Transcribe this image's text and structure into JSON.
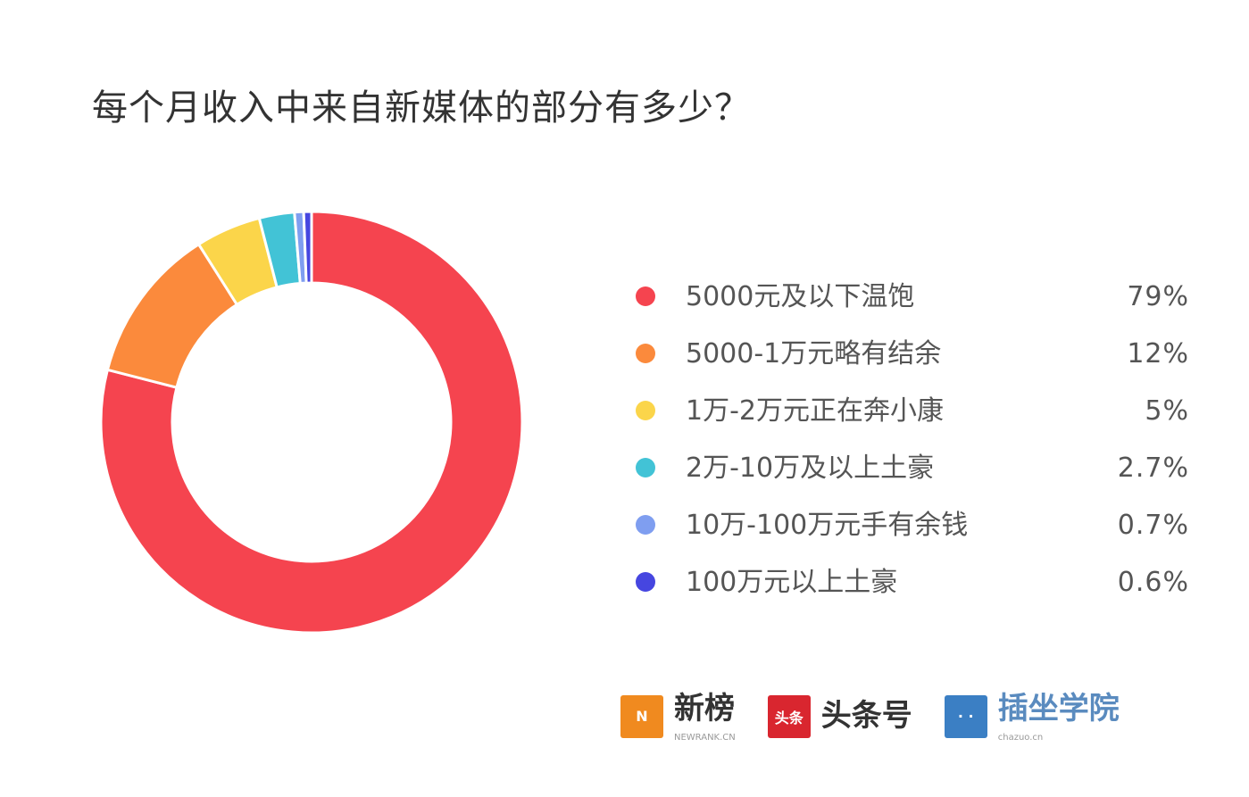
{
  "chart_data": {
    "type": "pie",
    "donut": true,
    "title": "每个月收入中来自新媒体的部分有多少？",
    "legend_position": "right",
    "slices": [
      {
        "label": "5000元及以下温饱",
        "value": 79,
        "display": "79%",
        "color": "#f5444f"
      },
      {
        "label": "5000-1万元略有结余",
        "value": 12,
        "display": "12%",
        "color": "#fb8a3c"
      },
      {
        "label": "1万-2万元正在奔小康",
        "value": 5,
        "display": "5%",
        "color": "#fbd54a"
      },
      {
        "label": "2万-10万及以上土豪",
        "value": 2.7,
        "display": "2.7%",
        "color": "#42c3d6"
      },
      {
        "label": "10万-100万元手有余钱",
        "value": 0.7,
        "display": "0.7%",
        "color": "#7f9ef0"
      },
      {
        "label": "100万元以上土豪",
        "value": 0.6,
        "display": "0.6%",
        "color": "#4646e0"
      }
    ]
  },
  "logos": [
    {
      "name": "新榜",
      "sub": "NEWRANK.CN",
      "mark": "N",
      "color": "#f08a1f"
    },
    {
      "name": "头条号",
      "sub": "",
      "mark": "头条",
      "color": "#d9262f"
    },
    {
      "name": "插坐学院",
      "sub": "chazuo.cn",
      "mark": "· ·",
      "color": "#3b7fc4"
    }
  ]
}
